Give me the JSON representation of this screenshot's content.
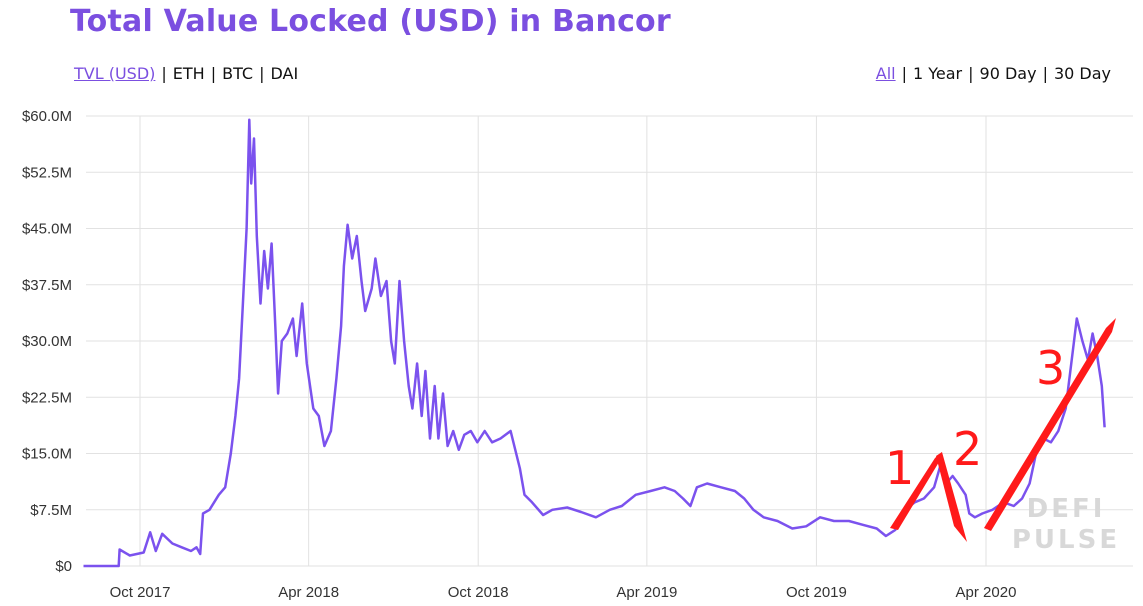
{
  "title": "Total Value Locked (USD) in Bancor",
  "metric_tabs": [
    {
      "label": "TVL (USD)",
      "active": true
    },
    {
      "label": "ETH",
      "active": false
    },
    {
      "label": "BTC",
      "active": false
    },
    {
      "label": "DAI",
      "active": false
    }
  ],
  "range_tabs": [
    {
      "label": "All",
      "active": true
    },
    {
      "label": "1 Year",
      "active": false
    },
    {
      "label": "90 Day",
      "active": false
    },
    {
      "label": "30 Day",
      "active": false
    }
  ],
  "separator": "|",
  "watermark": [
    "DEFI",
    "PULSE"
  ],
  "annotations": [
    "1",
    "2",
    "3"
  ],
  "colors": {
    "accent": "#7b4fe0",
    "line": "#7b52ee",
    "annotation": "#ff1a1a",
    "grid": "#e2e2e2"
  },
  "chart_data": {
    "type": "line",
    "title": "Total Value Locked (USD) in Bancor",
    "xlabel": "",
    "ylabel": "",
    "x_ticks": [
      "Oct 2017",
      "Apr 2018",
      "Oct 2018",
      "Apr 2019",
      "Oct 2019",
      "Apr 2020"
    ],
    "y_ticks": [
      "$0",
      "$7.5M",
      "$15.0M",
      "$22.5M",
      "$30.0M",
      "$37.5M",
      "$45.0M",
      "$52.5M",
      "$60.0M"
    ],
    "ylim": [
      0,
      60
    ],
    "y_unit": "USD millions",
    "grid": true,
    "series": [
      {
        "values": [
          [
            "2017-08-01",
            0
          ],
          [
            "2017-09-08",
            0
          ],
          [
            "2017-09-09",
            2.2
          ],
          [
            "2017-09-20",
            1.4
          ],
          [
            "2017-10-05",
            1.8
          ],
          [
            "2017-10-12",
            4.5
          ],
          [
            "2017-10-18",
            2.0
          ],
          [
            "2017-10-25",
            4.3
          ],
          [
            "2017-11-05",
            3.0
          ],
          [
            "2017-11-15",
            2.5
          ],
          [
            "2017-11-25",
            2.0
          ],
          [
            "2017-12-01",
            2.5
          ],
          [
            "2017-12-05",
            1.6
          ],
          [
            "2017-12-08",
            7.0
          ],
          [
            "2017-12-15",
            7.5
          ],
          [
            "2017-12-25",
            9.5
          ],
          [
            "2018-01-01",
            10.5
          ],
          [
            "2018-01-07",
            15.0
          ],
          [
            "2018-01-12",
            20.0
          ],
          [
            "2018-01-16",
            25.0
          ],
          [
            "2018-01-20",
            35.0
          ],
          [
            "2018-01-24",
            45.0
          ],
          [
            "2018-01-27",
            59.5
          ],
          [
            "2018-01-29",
            51.0
          ],
          [
            "2018-02-01",
            57.0
          ],
          [
            "2018-02-04",
            44.0
          ],
          [
            "2018-02-08",
            35.0
          ],
          [
            "2018-02-12",
            42.0
          ],
          [
            "2018-02-16",
            37.0
          ],
          [
            "2018-02-20",
            43.0
          ],
          [
            "2018-02-24",
            32.0
          ],
          [
            "2018-02-27",
            23.0
          ],
          [
            "2018-03-03",
            30.0
          ],
          [
            "2018-03-09",
            31.0
          ],
          [
            "2018-03-15",
            33.0
          ],
          [
            "2018-03-19",
            28.0
          ],
          [
            "2018-03-25",
            35.0
          ],
          [
            "2018-03-30",
            27.0
          ],
          [
            "2018-04-06",
            21.0
          ],
          [
            "2018-04-12",
            20.0
          ],
          [
            "2018-04-18",
            16.0
          ],
          [
            "2018-04-25",
            18.0
          ],
          [
            "2018-05-01",
            25.0
          ],
          [
            "2018-05-06",
            32.0
          ],
          [
            "2018-05-09",
            40.0
          ],
          [
            "2018-05-13",
            45.5
          ],
          [
            "2018-05-18",
            41.0
          ],
          [
            "2018-05-23",
            44.0
          ],
          [
            "2018-05-28",
            38.0
          ],
          [
            "2018-06-01",
            34.0
          ],
          [
            "2018-06-08",
            37.0
          ],
          [
            "2018-06-12",
            41.0
          ],
          [
            "2018-06-18",
            36.0
          ],
          [
            "2018-06-24",
            38.0
          ],
          [
            "2018-06-29",
            30.0
          ],
          [
            "2018-07-03",
            27.0
          ],
          [
            "2018-07-08",
            38.0
          ],
          [
            "2018-07-13",
            30.0
          ],
          [
            "2018-07-18",
            24.0
          ],
          [
            "2018-07-22",
            21.0
          ],
          [
            "2018-07-27",
            27.0
          ],
          [
            "2018-08-01",
            20.0
          ],
          [
            "2018-08-05",
            26.0
          ],
          [
            "2018-08-10",
            17.0
          ],
          [
            "2018-08-15",
            24.0
          ],
          [
            "2018-08-19",
            17.0
          ],
          [
            "2018-08-24",
            23.0
          ],
          [
            "2018-08-29",
            16.0
          ],
          [
            "2018-09-04",
            18.0
          ],
          [
            "2018-09-10",
            15.5
          ],
          [
            "2018-09-16",
            17.5
          ],
          [
            "2018-09-23",
            18.0
          ],
          [
            "2018-09-30",
            16.5
          ],
          [
            "2018-10-08",
            18.0
          ],
          [
            "2018-10-16",
            16.5
          ],
          [
            "2018-10-25",
            17.0
          ],
          [
            "2018-11-05",
            18.0
          ],
          [
            "2018-11-15",
            13.0
          ],
          [
            "2018-11-20",
            9.5
          ],
          [
            "2018-11-28",
            8.5
          ],
          [
            "2018-12-10",
            6.8
          ],
          [
            "2018-12-20",
            7.5
          ],
          [
            "2019-01-05",
            7.8
          ],
          [
            "2019-01-20",
            7.2
          ],
          [
            "2019-02-05",
            6.5
          ],
          [
            "2019-02-20",
            7.5
          ],
          [
            "2019-03-05",
            8.0
          ],
          [
            "2019-03-20",
            9.5
          ],
          [
            "2019-04-05",
            10.0
          ],
          [
            "2019-04-20",
            10.5
          ],
          [
            "2019-05-01",
            10.0
          ],
          [
            "2019-05-10",
            9.0
          ],
          [
            "2019-05-18",
            8.0
          ],
          [
            "2019-05-25",
            10.5
          ],
          [
            "2019-06-05",
            11.0
          ],
          [
            "2019-06-20",
            10.5
          ],
          [
            "2019-07-05",
            10.0
          ],
          [
            "2019-07-15",
            9.0
          ],
          [
            "2019-07-25",
            7.5
          ],
          [
            "2019-08-05",
            6.5
          ],
          [
            "2019-08-20",
            6.0
          ],
          [
            "2019-09-05",
            5.0
          ],
          [
            "2019-09-20",
            5.3
          ],
          [
            "2019-10-05",
            6.5
          ],
          [
            "2019-10-20",
            6.0
          ],
          [
            "2019-11-05",
            6.0
          ],
          [
            "2019-11-20",
            5.5
          ],
          [
            "2019-12-05",
            5.0
          ],
          [
            "2019-12-15",
            4.0
          ],
          [
            "2019-12-25",
            4.8
          ],
          [
            "2020-01-05",
            7.5
          ],
          [
            "2020-01-15",
            8.5
          ],
          [
            "2020-01-25",
            9.0
          ],
          [
            "2020-02-05",
            10.5
          ],
          [
            "2020-02-12",
            13.5
          ],
          [
            "2020-02-18",
            11.0
          ],
          [
            "2020-02-25",
            12.0
          ],
          [
            "2020-03-02",
            11.0
          ],
          [
            "2020-03-10",
            9.5
          ],
          [
            "2020-03-14",
            7.0
          ],
          [
            "2020-03-20",
            6.5
          ],
          [
            "2020-03-28",
            7.0
          ],
          [
            "2020-04-08",
            7.5
          ],
          [
            "2020-04-20",
            8.5
          ],
          [
            "2020-05-01",
            8.0
          ],
          [
            "2020-05-10",
            9.0
          ],
          [
            "2020-05-18",
            11.0
          ],
          [
            "2020-05-25",
            15.0
          ],
          [
            "2020-06-02",
            17.0
          ],
          [
            "2020-06-10",
            16.5
          ],
          [
            "2020-06-18",
            18.0
          ],
          [
            "2020-06-26",
            21.0
          ],
          [
            "2020-07-03",
            28.0
          ],
          [
            "2020-07-08",
            33.0
          ],
          [
            "2020-07-14",
            30.0
          ],
          [
            "2020-07-20",
            27.5
          ],
          [
            "2020-07-25",
            31.0
          ],
          [
            "2020-07-30",
            28.0
          ],
          [
            "2020-08-04",
            24.0
          ],
          [
            "2020-08-07",
            18.5
          ]
        ]
      }
    ]
  }
}
